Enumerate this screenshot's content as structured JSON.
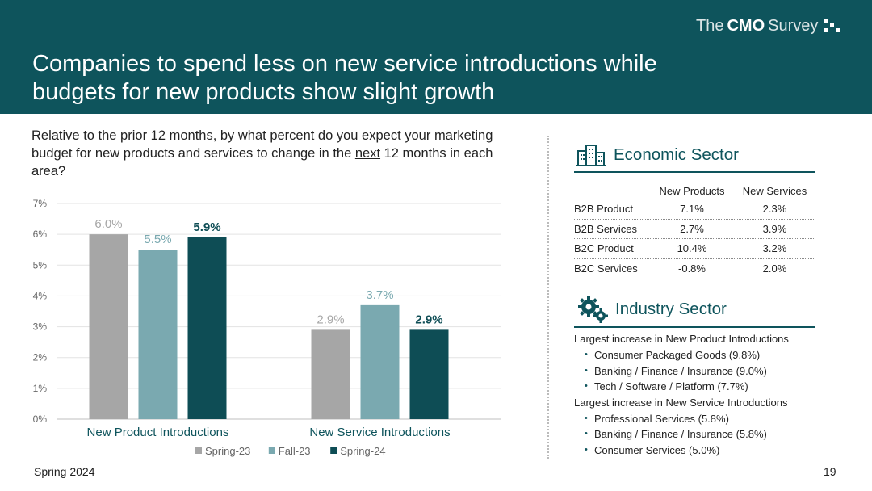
{
  "header": {
    "title_line1": "Companies to spend less on new service introductions while",
    "title_line2": "budgets for new products show slight growth",
    "logo": {
      "word1": "The",
      "word2": "CMO",
      "word3": "Survey"
    }
  },
  "question": {
    "part1": "Relative to the prior 12 months, by what percent do you expect your marketing budget for new products and services to change in the ",
    "underlined": "next",
    "part2": " 12 months in each area?"
  },
  "colors": {
    "header_bg": "#0e545c",
    "spring23": "#a6a6a6",
    "fall23": "#7aa9b0",
    "spring24": "#0e4d55",
    "accent": "#0e545c"
  },
  "chart_data": {
    "type": "bar",
    "categories": [
      "New Product Introductions",
      "New Service Introductions"
    ],
    "series": [
      {
        "name": "Spring-23",
        "values": [
          6.0,
          2.9
        ],
        "labels": [
          "6.0%",
          "2.9%"
        ],
        "color": "#a6a6a6"
      },
      {
        "name": "Fall-23",
        "values": [
          5.5,
          3.7
        ],
        "labels": [
          "5.5%",
          "3.7%"
        ],
        "color": "#7aa9b0"
      },
      {
        "name": "Spring-24",
        "values": [
          5.9,
          2.9
        ],
        "labels": [
          "5.9%",
          "2.9%"
        ],
        "color": "#0e4d55"
      }
    ],
    "yticks": [
      "0%",
      "1%",
      "2%",
      "3%",
      "4%",
      "5%",
      "6%",
      "7%"
    ],
    "ylim": [
      0,
      7
    ],
    "grid": true,
    "legend": "bottom"
  },
  "economic": {
    "title": "Economic Sector",
    "icon": "buildings-icon",
    "columns": [
      "",
      "New Products",
      "New Services"
    ],
    "rows": [
      [
        "B2B Product",
        "7.1%",
        "2.3%"
      ],
      [
        "B2B Services",
        "2.7%",
        "3.9%"
      ],
      [
        "B2C Product",
        "10.4%",
        "3.2%"
      ],
      [
        "B2C Services",
        "-0.8%",
        "2.0%"
      ]
    ]
  },
  "industry": {
    "title": "Industry Sector",
    "icon": "gears-icon",
    "group1_title": "Largest increase in New Product Introductions",
    "group1_items": [
      "Consumer Packaged Goods (9.8%)",
      "Banking / Finance / Insurance (9.0%)",
      "Tech / Software / Platform (7.7%)"
    ],
    "group2_title": "Largest increase in New Service Introductions",
    "group2_items": [
      "Professional Services (5.8%)",
      "Banking / Finance / Insurance (5.8%)",
      "Consumer Services (5.0%)"
    ]
  },
  "footer": {
    "left": "Spring 2024",
    "page": "19"
  }
}
